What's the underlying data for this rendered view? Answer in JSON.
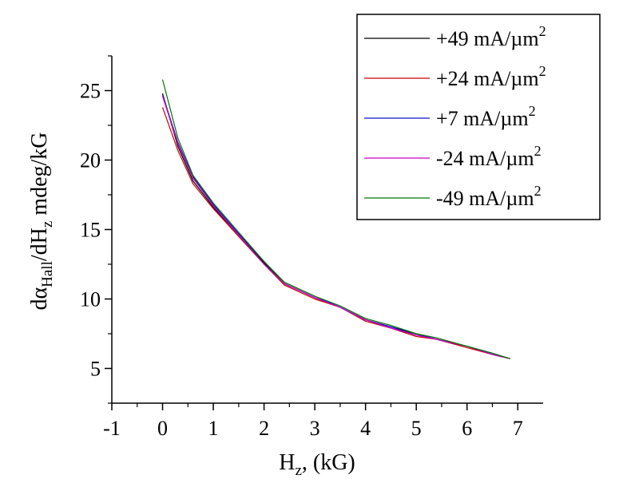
{
  "chart_data": {
    "type": "line",
    "title": "",
    "xlabel": {
      "main": "H",
      "sub": "z",
      "suffix": ", (kG)"
    },
    "ylabel": {
      "d": "d",
      "alpha": "α",
      "sub1": "Hall",
      "mid": "/dH",
      "sub2": "z",
      "suffix": " mdeg/kG"
    },
    "xlim": [
      -1,
      7.5
    ],
    "ylim": [
      2.5,
      27.5
    ],
    "x_ticks": [
      -1,
      0,
      1,
      2,
      3,
      4,
      5,
      6,
      7
    ],
    "y_ticks": [
      5,
      10,
      15,
      20,
      25
    ],
    "grid": false,
    "legend_position": "top-right",
    "series": [
      {
        "name": "+49 mA/µm",
        "superscript": "2",
        "color": "#000000",
        "points": [
          [
            0,
            24.8
          ],
          [
            0.3,
            21.0
          ],
          [
            0.6,
            18.5
          ],
          [
            1,
            16.6
          ],
          [
            1.5,
            14.6
          ],
          [
            2,
            12.6
          ],
          [
            2.4,
            11.1
          ],
          [
            3,
            10.1
          ],
          [
            3.5,
            9.4
          ],
          [
            4,
            8.5
          ],
          [
            4.5,
            8.0
          ],
          [
            5,
            7.4
          ],
          [
            5.4,
            7.1
          ],
          [
            6,
            6.6
          ],
          [
            6.5,
            6.0
          ],
          [
            6.85,
            5.7
          ]
        ]
      },
      {
        "name": "+24 mA/µm",
        "superscript": "2",
        "color": "#cc0000",
        "points": [
          [
            0,
            23.8
          ],
          [
            0.3,
            20.7
          ],
          [
            0.6,
            18.3
          ],
          [
            1,
            16.5
          ],
          [
            1.5,
            14.5
          ],
          [
            2,
            12.5
          ],
          [
            2.4,
            11.0
          ],
          [
            3,
            10.0
          ],
          [
            3.5,
            9.4
          ],
          [
            4,
            8.4
          ],
          [
            4.5,
            7.9
          ],
          [
            5,
            7.3
          ],
          [
            5.4,
            7.1
          ],
          [
            6,
            6.5
          ],
          [
            6.5,
            6.0
          ],
          [
            6.85,
            5.7
          ]
        ]
      },
      {
        "name": "+7 mA/µm",
        "superscript": "2",
        "color": "#1010cc",
        "points": [
          [
            0,
            24.7
          ],
          [
            0.3,
            21.3
          ],
          [
            0.6,
            18.8
          ],
          [
            1,
            16.8
          ],
          [
            1.5,
            14.7
          ],
          [
            2,
            12.7
          ],
          [
            2.4,
            11.2
          ],
          [
            3,
            10.2
          ],
          [
            3.5,
            9.4
          ],
          [
            4,
            8.5
          ],
          [
            4.5,
            8.0
          ],
          [
            5,
            7.5
          ],
          [
            5.4,
            7.1
          ],
          [
            6,
            6.6
          ],
          [
            6.5,
            6.1
          ],
          [
            6.85,
            5.7
          ]
        ]
      },
      {
        "name": "-24 mA/µm",
        "superscript": "2",
        "color": "#cc00cc",
        "points": [
          [
            0,
            24.6
          ],
          [
            0.3,
            21.2
          ],
          [
            0.6,
            18.7
          ],
          [
            1,
            16.7
          ],
          [
            1.5,
            14.6
          ],
          [
            2,
            12.5
          ],
          [
            2.4,
            11.1
          ],
          [
            3,
            10.1
          ],
          [
            3.5,
            9.4
          ],
          [
            4,
            8.5
          ],
          [
            4.5,
            7.9
          ],
          [
            5,
            7.4
          ],
          [
            5.4,
            7.1
          ],
          [
            6,
            6.6
          ],
          [
            6.5,
            6.0
          ],
          [
            6.85,
            5.7
          ]
        ]
      },
      {
        "name": "-49 mA/µm",
        "superscript": "2",
        "color": "#007700",
        "points": [
          [
            0,
            25.8
          ],
          [
            0.3,
            21.6
          ],
          [
            0.6,
            18.9
          ],
          [
            1,
            16.9
          ],
          [
            1.5,
            14.8
          ],
          [
            2,
            12.7
          ],
          [
            2.4,
            11.2
          ],
          [
            3,
            10.2
          ],
          [
            3.5,
            9.5
          ],
          [
            4,
            8.6
          ],
          [
            4.5,
            8.1
          ],
          [
            5,
            7.5
          ],
          [
            5.4,
            7.2
          ],
          [
            6,
            6.6
          ],
          [
            6.5,
            6.1
          ],
          [
            6.85,
            5.7
          ]
        ]
      }
    ]
  }
}
